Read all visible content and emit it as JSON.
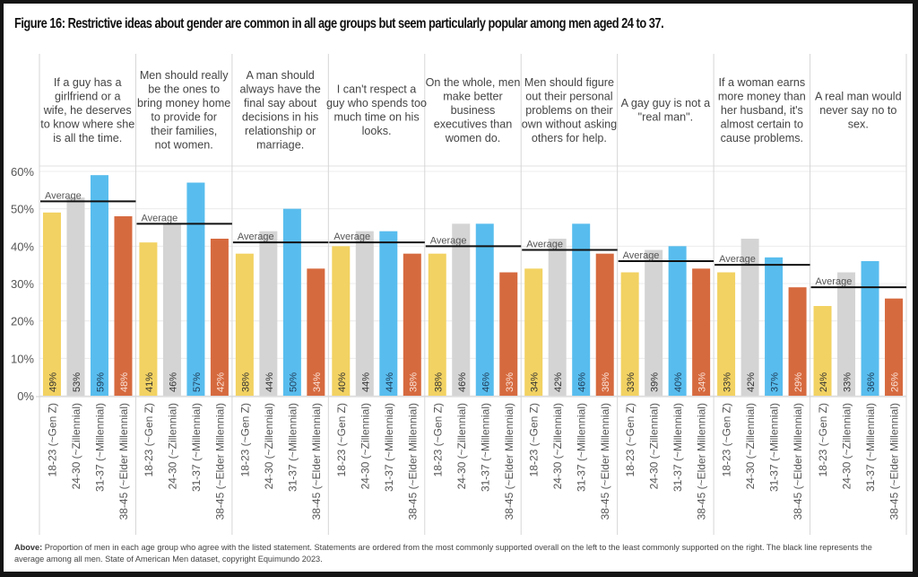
{
  "figure": {
    "title": "Figure 16: Restrictive ideas about gender are common in all age groups but seem particularly popular among men aged 24 to 37.",
    "caption_lead": "Above:",
    "caption_text": "Proportion of men in each age group who agree with the listed statement. Statements are ordered from the most commonly supported overall on the left to the least commonly supported on the right. The black line represents the average among all men. State of American Men dataset, copyright Equimundo 2023."
  },
  "chart_data": {
    "type": "bar",
    "title": "Figure 16: Restrictive ideas about gender are common in all age groups but seem particularly popular among men aged 24 to 37.",
    "xlabel": "",
    "ylabel": "",
    "ylim": [
      0,
      60
    ],
    "yticks": [
      "0%",
      "10%",
      "20%",
      "30%",
      "40%",
      "50%",
      "60%"
    ],
    "ytick_values": [
      0,
      10,
      20,
      30,
      40,
      50,
      60
    ],
    "grid": true,
    "average_label": "Average",
    "categories": [
      "18-23 (~Gen Z)",
      "24-30 (~Zillennial)",
      "31-37 (~Millennial)",
      "38-45 (~Elder Millennial)"
    ],
    "series_colors": [
      "#f2d262",
      "#d4d4d4",
      "#58bdee",
      "#d66a3f"
    ],
    "label_colors": [
      "#333333",
      "#333333",
      "#1f3a55",
      "#fbe3d8"
    ],
    "panels": [
      {
        "statement": "If a guy has a girlfriend or a wife, he deserves to know where she is all the time.",
        "values": [
          49,
          53,
          59,
          48
        ],
        "average": 52
      },
      {
        "statement": "Men should really be the ones to bring money home to provide for their families, not women.",
        "values": [
          41,
          46,
          57,
          42
        ],
        "average": 46
      },
      {
        "statement": "A man should always have the final say about decisions in his relationship or marriage.",
        "values": [
          38,
          44,
          50,
          34
        ],
        "average": 41
      },
      {
        "statement": "I can't respect a guy who spends too much time on his looks.",
        "values": [
          40,
          44,
          44,
          38
        ],
        "average": 41
      },
      {
        "statement": "On the whole, men make better business executives than women do.",
        "values": [
          38,
          46,
          46,
          33
        ],
        "average": 40
      },
      {
        "statement": "Men should figure out their personal problems on their own without asking others for help.",
        "values": [
          34,
          42,
          46,
          38
        ],
        "average": 39
      },
      {
        "statement": "A gay guy is not a \"real man\".",
        "values": [
          33,
          39,
          40,
          34
        ],
        "average": 36
      },
      {
        "statement": "If a woman earns more money than her husband, it's almost certain to cause problems.",
        "values": [
          33,
          42,
          37,
          29
        ],
        "average": 35
      },
      {
        "statement": "A real man would never say no to sex.",
        "values": [
          24,
          33,
          36,
          26
        ],
        "average": 29
      }
    ]
  }
}
